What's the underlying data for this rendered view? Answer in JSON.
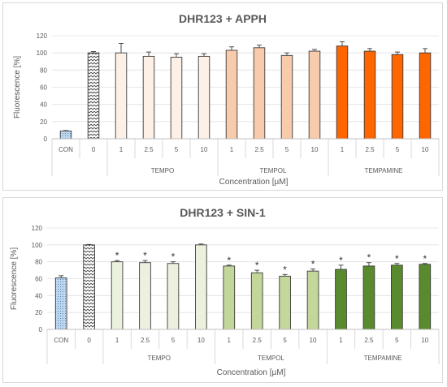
{
  "chart_data": [
    {
      "type": "bar",
      "title": "DHR123 + APPH",
      "xlabel": "Concentration [µM]",
      "ylabel": "Fluorescence [%]",
      "ylim": [
        0,
        120
      ],
      "yticks": [
        0,
        20,
        40,
        60,
        80,
        100,
        120
      ],
      "grid": true,
      "categories": [
        "CON",
        "0",
        "1",
        "2.5",
        "5",
        "10",
        "1",
        "2.5",
        "5",
        "10",
        "1",
        "2.5",
        "5",
        "10"
      ],
      "groups": [
        {
          "label": "",
          "span": [
            0,
            1
          ]
        },
        {
          "label": "TEMPO",
          "span": [
            2,
            5
          ]
        },
        {
          "label": "TEMPOL",
          "span": [
            6,
            9
          ]
        },
        {
          "label": "TEMPAMINE",
          "span": [
            10,
            13
          ]
        }
      ],
      "values": [
        9,
        100,
        100,
        96,
        95,
        96,
        103,
        106,
        97,
        102,
        108,
        102,
        98,
        100
      ],
      "errors": [
        0.5,
        1.5,
        11,
        5,
        4,
        3,
        4,
        3,
        3,
        2,
        5,
        3,
        3,
        5
      ],
      "significant": [
        false,
        false,
        false,
        false,
        false,
        false,
        false,
        false,
        false,
        false,
        false,
        false,
        false,
        false
      ],
      "colors": [
        "#bdd7ee",
        "#ffffff",
        "#fdf0e6",
        "#fdf0e6",
        "#fdf0e6",
        "#fdf0e6",
        "#f8cbad",
        "#f8cbad",
        "#f8cbad",
        "#f8cbad",
        "#ff6600",
        "#ff6600",
        "#ff6600",
        "#ff6600"
      ],
      "patterns": [
        "dots",
        "zigzag",
        "",
        "",
        "",
        "",
        "",
        "",
        "",
        "",
        "",
        "",
        "",
        ""
      ]
    },
    {
      "type": "bar",
      "title": "DHR123 + SIN-1",
      "xlabel": "Concentration [µM]",
      "ylabel": "Fluorescence [%]",
      "ylim": [
        0,
        120
      ],
      "yticks": [
        0,
        20,
        40,
        60,
        80,
        100,
        120
      ],
      "grid": true,
      "categories": [
        "CON",
        "0",
        "1",
        "2.5",
        "5",
        "10",
        "1",
        "2.5",
        "5",
        "10",
        "1",
        "2.5",
        "5",
        "10"
      ],
      "groups": [
        {
          "label": "",
          "span": [
            0,
            1
          ]
        },
        {
          "label": "TEMPO",
          "span": [
            2,
            5
          ]
        },
        {
          "label": "TEMPOL",
          "span": [
            6,
            9
          ]
        },
        {
          "label": "TEMPAMINE",
          "span": [
            10,
            13
          ]
        }
      ],
      "values": [
        61,
        100,
        80,
        79,
        78,
        100,
        75,
        67,
        63,
        69,
        71,
        75,
        76,
        77
      ],
      "errors": [
        2.5,
        0.5,
        1.5,
        2.5,
        2,
        1,
        1,
        3,
        2,
        2.5,
        5,
        4,
        2,
        1
      ],
      "significant": [
        false,
        false,
        true,
        true,
        true,
        false,
        true,
        true,
        true,
        true,
        true,
        true,
        true,
        true
      ],
      "significance_marker": "*",
      "colors": [
        "#bdd7ee",
        "#ffffff",
        "#ebf1de",
        "#ebf1de",
        "#ebf1de",
        "#ebf1de",
        "#c4d79b",
        "#c4d79b",
        "#c4d79b",
        "#c4d79b",
        "#5a8a2e",
        "#5a8a2e",
        "#5a8a2e",
        "#5a8a2e"
      ],
      "patterns": [
        "dots",
        "zigzag",
        "",
        "",
        "",
        "",
        "",
        "",
        "",
        "",
        "",
        "",
        "",
        ""
      ]
    }
  ]
}
